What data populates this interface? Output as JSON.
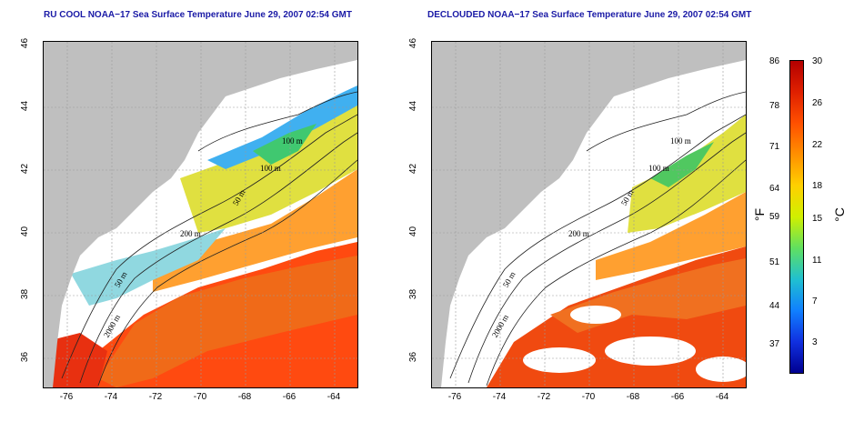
{
  "panels": [
    {
      "title": "RU COOL NOAA−17 Sea Surface Temperature June 29, 2007 02:54 GMT"
    },
    {
      "title": "DECLOUDED NOAA−17 Sea Surface Temperature June 29, 2007 02:54 GMT"
    }
  ],
  "axes": {
    "x_ticks": [
      "-76",
      "-74",
      "-72",
      "-70",
      "-68",
      "-66",
      "-64"
    ],
    "y_ticks": [
      "36",
      "38",
      "40",
      "42",
      "44",
      "46"
    ]
  },
  "contours": [
    {
      "label": "100 m"
    },
    {
      "label": "100 m"
    },
    {
      "label": "50 m"
    },
    {
      "label": "200 m"
    },
    {
      "label": "50 m"
    },
    {
      "label": "2000 m"
    }
  ],
  "colorbar": {
    "fahrenheit_labels": [
      "86",
      "78",
      "71",
      "64",
      "59",
      "51",
      "44",
      "37"
    ],
    "celsius_labels": [
      "30",
      "26",
      "22",
      "18",
      "15",
      "11",
      "7",
      "3"
    ],
    "fahrenheit_unit": "°F",
    "celsius_unit": "°C",
    "colors": [
      "#b30000",
      "#e02000",
      "#ff5000",
      "#ff9000",
      "#ffd000",
      "#d0f000",
      "#60e060",
      "#20c0d0",
      "#1080ff",
      "#1030e0",
      "#000090"
    ]
  },
  "colors": {
    "land": "#bfbfbf",
    "cloud": "#ffffff",
    "title": "#1a1aa6"
  }
}
